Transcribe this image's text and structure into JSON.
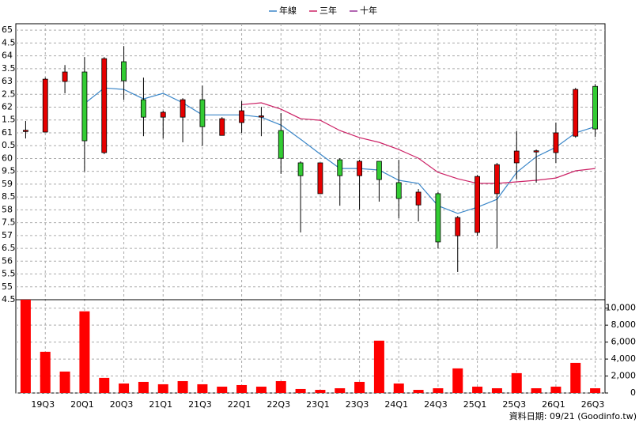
{
  "chart_data": {
    "type": "candlestick",
    "categories": [
      null,
      "19Q3",
      null,
      "20Q1",
      null,
      "20Q3",
      null,
      "21Q1",
      null,
      "21Q3",
      null,
      "22Q1",
      null,
      "22Q3",
      null,
      "23Q1",
      null,
      "23Q3",
      null,
      "24Q1",
      null,
      "24Q3",
      null,
      "25Q1",
      null,
      "25Q3",
      null,
      "26Q1",
      null,
      "26Q3"
    ],
    "open": [
      61.05,
      61.03,
      63.0,
      63.37,
      60.23,
      63.77,
      62.29,
      61.61,
      61.61,
      62.29,
      60.9,
      61.4,
      61.62,
      61.09,
      59.83,
      58.63,
      59.95,
      59.33,
      59.89,
      59.06,
      58.19,
      58.63,
      56.99,
      57.12,
      58.63,
      59.83,
      60.27,
      60.23,
      60.87,
      62.81
    ],
    "high": [
      61.46,
      63.15,
      63.64,
      63.95,
      63.95,
      64.38,
      63.15,
      61.86,
      62.35,
      62.84,
      61.61,
      62.23,
      62.01,
      61.77,
      59.89,
      59.83,
      60.01,
      59.95,
      59.89,
      59.95,
      58.81,
      58.69,
      57.76,
      59.36,
      59.83,
      61.07,
      60.35,
      61.4,
      62.75,
      62.9
    ],
    "low": [
      60.78,
      61.03,
      62.54,
      59.49,
      60.17,
      62.29,
      60.87,
      60.78,
      60.63,
      60.5,
      60.9,
      61.0,
      60.87,
      59.4,
      57.12,
      58.63,
      58.16,
      58.01,
      58.32,
      57.67,
      57.55,
      56.5,
      55.58,
      56.99,
      56.5,
      59.18,
      59.06,
      59.83,
      60.81,
      60.84
    ],
    "close": [
      61.1,
      63.09,
      63.37,
      60.69,
      63.89,
      63.03,
      61.61,
      61.8,
      62.29,
      61.24,
      61.55,
      61.86,
      61.66,
      60.01,
      59.33,
      59.83,
      59.33,
      59.89,
      59.18,
      58.44,
      58.69,
      56.75,
      57.7,
      59.3,
      59.76,
      60.29,
      60.3,
      61.0,
      62.69,
      61.15
    ],
    "up_color": "#e60000",
    "down_color": "#33cc33",
    "series": [
      {
        "name": "年線",
        "color": "#3a86c8",
        "values": [
          null,
          null,
          null,
          62.14,
          62.75,
          62.69,
          62.32,
          62.54,
          62.17,
          61.7,
          61.7,
          61.7,
          61.61,
          61.3,
          60.75,
          60.17,
          59.61,
          59.61,
          59.55,
          59.15,
          59.03,
          58.16,
          57.86,
          58.1,
          58.41,
          59.46,
          60.07,
          60.44,
          61.0,
          61.24
        ]
      },
      {
        "name": "三年",
        "color": "#cc2266",
        "values": [
          null,
          null,
          null,
          null,
          null,
          null,
          null,
          null,
          null,
          null,
          null,
          62.1,
          62.17,
          61.92,
          61.55,
          61.49,
          61.09,
          60.81,
          60.63,
          60.35,
          60.01,
          59.46,
          59.21,
          59.03,
          59.03,
          59.09,
          59.15,
          59.24,
          59.52,
          59.61
        ]
      },
      {
        "name": "十年",
        "color": "#993399",
        "values": [
          null,
          null,
          null,
          null,
          null,
          null,
          null,
          null,
          null,
          null,
          null,
          null,
          null,
          null,
          null,
          null,
          null,
          null,
          null,
          null,
          null,
          null,
          null,
          null,
          null,
          null,
          null,
          null,
          null,
          null
        ]
      }
    ],
    "volume": {
      "color": "#ff0000",
      "axis": "y2",
      "values": [
        11000,
        4860,
        2530,
        9630,
        1780,
        1120,
        1310,
        1030,
        1400,
        1030,
        750,
        935,
        750,
        1400,
        470,
        370,
        560,
        1310,
        6170,
        1120,
        370,
        560,
        2900,
        750,
        560,
        2340,
        560,
        750,
        3550,
        560
      ]
    },
    "ylim": [
      54.5,
      65.25
    ],
    "yticks": [
      65,
      {
        "value": 64.5,
        "label": "4.5"
      },
      64,
      {
        "value": 63.5,
        "label": "3.5"
      },
      63,
      {
        "value": 62.5,
        "label": "2.5"
      },
      62,
      {
        "value": 61.5,
        "label": "1.5"
      },
      61,
      {
        "value": 60.5,
        "label": "0.5"
      },
      60,
      {
        "value": 59.5,
        "label": "9.5"
      },
      59,
      {
        "value": 58.5,
        "label": "8.5"
      },
      58,
      {
        "value": 57.5,
        "label": "7.5"
      },
      57,
      {
        "value": 56.5,
        "label": "6.5"
      },
      56,
      {
        "value": 55.5,
        "label": "5.5"
      },
      55,
      {
        "value": 54.5,
        "label": "4.5"
      }
    ],
    "y2lim": [
      0,
      11000
    ],
    "y2ticks": [
      0,
      {
        "value": 2000,
        "label": "2,000"
      },
      {
        "value": 4000,
        "label": "4,000"
      },
      {
        "value": 6000,
        "label": "6,000"
      },
      {
        "value": 8000,
        "label": "8,000"
      },
      {
        "value": 10000,
        "label": "10,000"
      }
    ],
    "grid": true,
    "source": "資料日期: 09/21  (Goodinfo.tw)"
  }
}
